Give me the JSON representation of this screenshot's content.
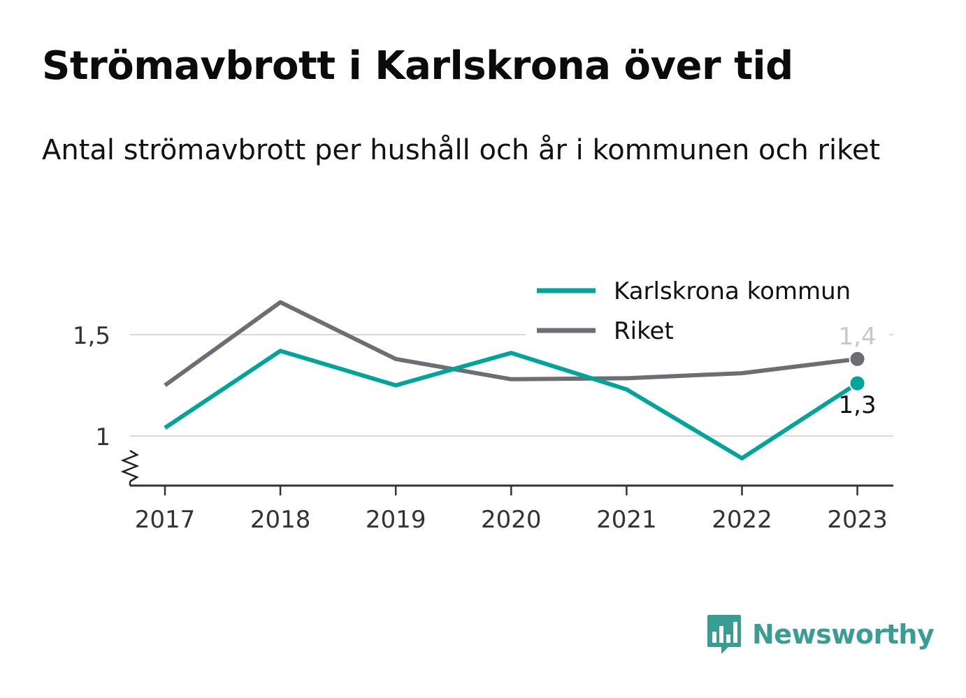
{
  "title": "Strömavbrott i Karlskrona över tid",
  "subtitle": "Antal strömavbrott per hushåll och år i kommunen och riket",
  "brand": "Newsworthy",
  "colors": {
    "kommun": "#00a49a",
    "riket": "#6d6d74",
    "grid": "#d9d9d9",
    "axis": "#333333",
    "brand": "#3a9d93"
  },
  "chart_data": {
    "type": "line",
    "x": [
      "2017",
      "2018",
      "2019",
      "2020",
      "2021",
      "2022",
      "2023"
    ],
    "series": [
      {
        "name": "Karlskrona kommun",
        "key": "kommun",
        "values": [
          1.04,
          1.42,
          1.25,
          1.41,
          1.23,
          0.89,
          1.26
        ],
        "end_label": "1,3"
      },
      {
        "name": "Riket",
        "key": "riket",
        "values": [
          1.25,
          1.66,
          1.38,
          1.28,
          1.285,
          1.31,
          1.38
        ],
        "end_label": "1,4"
      }
    ],
    "yticks": [
      {
        "value": 1.0,
        "label": "1"
      },
      {
        "value": 1.5,
        "label": "1,5"
      }
    ],
    "ylim": [
      0.76,
      1.76
    ],
    "y_axis_break": true,
    "grid": true,
    "legend": "top-right"
  }
}
